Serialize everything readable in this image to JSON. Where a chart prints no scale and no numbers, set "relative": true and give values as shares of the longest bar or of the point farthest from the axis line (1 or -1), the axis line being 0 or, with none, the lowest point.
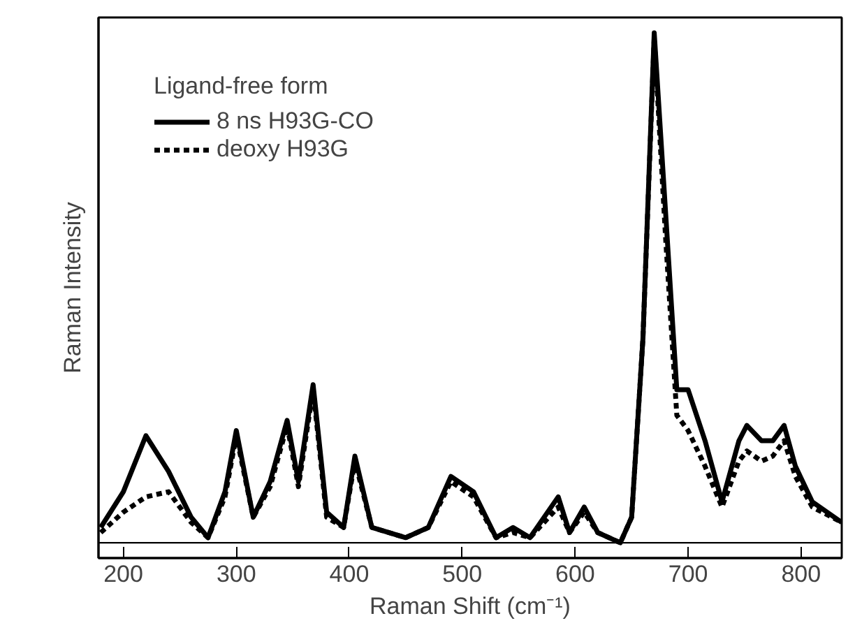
{
  "chart_data": {
    "type": "line",
    "xlabel": "Raman Shift (cm⁻¹)",
    "ylabel": "Raman Intensity",
    "legend_title": "Ligand-free form",
    "legend": "top left",
    "relative": true,
    "xlim": [
      178,
      836
    ],
    "xticks": [
      200,
      300,
      400,
      500,
      600,
      700,
      800
    ],
    "grid": false,
    "marker": "none",
    "series": [
      {
        "name": "8 ns H93G-CO",
        "color": "#000000",
        "line_style": "solid",
        "x": [
          180,
          200,
          220,
          240,
          260,
          275,
          290,
          300,
          315,
          330,
          345,
          355,
          368,
          380,
          395,
          405,
          420,
          450,
          470,
          490,
          510,
          530,
          545,
          560,
          585,
          595,
          608,
          620,
          640,
          650,
          660,
          670,
          680,
          690,
          700,
          715,
          730,
          745,
          752,
          765,
          775,
          785,
          795,
          810,
          836
        ],
        "values": [
          0.03,
          0.1,
          0.21,
          0.14,
          0.05,
          0.01,
          0.1,
          0.22,
          0.05,
          0.12,
          0.24,
          0.12,
          0.31,
          0.06,
          0.03,
          0.17,
          0.03,
          0.01,
          0.03,
          0.13,
          0.1,
          0.01,
          0.03,
          0.01,
          0.09,
          0.02,
          0.07,
          0.02,
          0.0,
          0.05,
          0.4,
          1.0,
          0.65,
          0.3,
          0.3,
          0.2,
          0.08,
          0.2,
          0.23,
          0.2,
          0.2,
          0.23,
          0.15,
          0.08,
          0.04
        ]
      },
      {
        "name": "deoxy H93G",
        "color": "#000000",
        "line_style": "dashed",
        "x": [
          180,
          200,
          220,
          240,
          260,
          275,
          290,
          300,
          315,
          330,
          345,
          355,
          368,
          380,
          395,
          405,
          420,
          450,
          470,
          490,
          510,
          530,
          545,
          560,
          585,
          595,
          608,
          620,
          640,
          650,
          660,
          670,
          680,
          690,
          700,
          715,
          730,
          745,
          752,
          765,
          775,
          785,
          795,
          810,
          836
        ],
        "values": [
          0.02,
          0.06,
          0.09,
          0.1,
          0.04,
          0.01,
          0.09,
          0.21,
          0.05,
          0.11,
          0.23,
          0.11,
          0.3,
          0.05,
          0.03,
          0.16,
          0.03,
          0.01,
          0.03,
          0.12,
          0.09,
          0.01,
          0.02,
          0.01,
          0.07,
          0.02,
          0.06,
          0.02,
          0.0,
          0.05,
          0.4,
          0.99,
          0.6,
          0.25,
          0.22,
          0.15,
          0.07,
          0.16,
          0.18,
          0.16,
          0.17,
          0.2,
          0.13,
          0.07,
          0.04
        ]
      }
    ]
  }
}
